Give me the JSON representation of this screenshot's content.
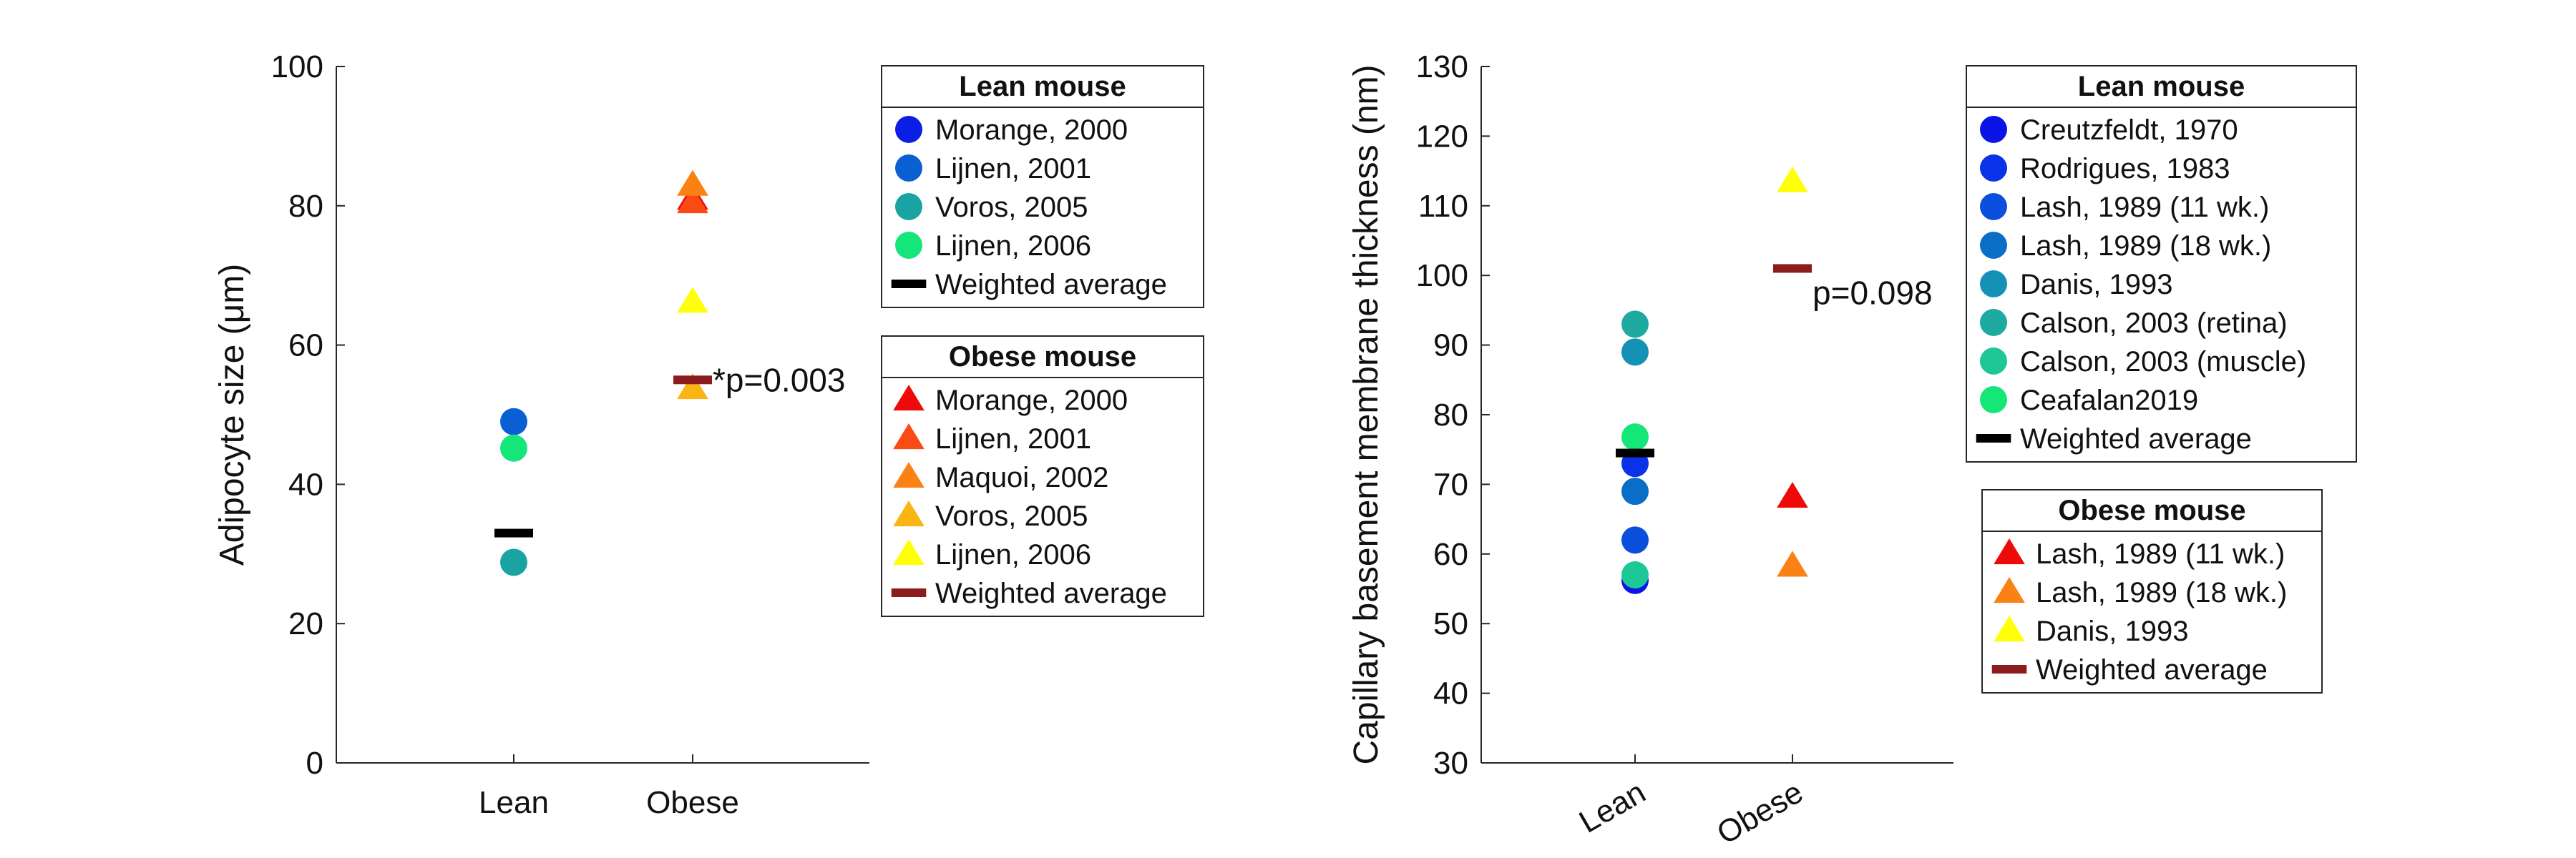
{
  "chart_data": [
    {
      "type": "scatter",
      "ylabel": "Adipocyte size (μm)",
      "ylim": [
        0,
        100
      ],
      "yticks": [
        0,
        20,
        40,
        60,
        80,
        100
      ],
      "categories": [
        "Lean",
        "Obese"
      ],
      "grid": false,
      "series": [
        {
          "name": "Morange, 2000",
          "group": "Lean",
          "x": "Lean",
          "y": null,
          "marker": "circle",
          "color": "#0a1ee6"
        },
        {
          "name": "Lijnen, 2001",
          "group": "Lean",
          "x": "Lean",
          "y": 49,
          "marker": "circle",
          "color": "#0a5fd2"
        },
        {
          "name": "Voros, 2005",
          "group": "Lean",
          "x": "Lean",
          "y": 28.8,
          "marker": "circle",
          "color": "#1aa3a3"
        },
        {
          "name": "Lijnen, 2006",
          "group": "Lean",
          "x": "Lean",
          "y": 45.2,
          "marker": "circle",
          "color": "#14e67a"
        },
        {
          "name": "Weighted average",
          "group": "Lean",
          "x": "Lean",
          "y": 33,
          "marker": "bar",
          "color": "#000000"
        },
        {
          "name": "Morange, 2000",
          "group": "Obese",
          "x": "Obese",
          "y": 81,
          "marker": "triangle",
          "color": "#ee0a0a"
        },
        {
          "name": "Lijnen, 2001",
          "group": "Obese",
          "x": "Obese",
          "y": 80.5,
          "marker": "triangle",
          "color": "#fa4b14"
        },
        {
          "name": "Maquoi, 2002",
          "group": "Obese",
          "x": "Obese",
          "y": 83,
          "marker": "triangle",
          "color": "#fa8214"
        },
        {
          "name": "Voros, 2005",
          "group": "Obese",
          "x": "Obese",
          "y": 53.8,
          "marker": "triangle",
          "color": "#fab414"
        },
        {
          "name": "Lijnen, 2006",
          "group": "Obese",
          "x": "Obese",
          "y": 66.2,
          "marker": "triangle",
          "color": "#ffff0a"
        },
        {
          "name": "Weighted average",
          "group": "Obese",
          "x": "Obese",
          "y": 55,
          "marker": "bar",
          "color": "#8c1c1c"
        }
      ],
      "annotation": "*p=0.003",
      "legend_lean_title": "Lean mouse",
      "legend_obese_title": "Obese mouse",
      "legend_placement": "right"
    },
    {
      "type": "scatter",
      "ylabel": "Capillary basement membrane thickness (nm)",
      "ylim": [
        30,
        130
      ],
      "yticks": [
        30,
        40,
        50,
        60,
        70,
        80,
        90,
        100,
        110,
        120,
        130
      ],
      "categories": [
        "Lean",
        "Obese"
      ],
      "grid": false,
      "series": [
        {
          "name": "Creutzfeldt, 1970",
          "group": "Lean",
          "x": "Lean",
          "y": 56.2,
          "marker": "circle",
          "color": "#0a14e6"
        },
        {
          "name": "Rodrigues, 1983",
          "group": "Lean",
          "x": "Lean",
          "y": 73,
          "marker": "circle",
          "color": "#0a32e6"
        },
        {
          "name": "Lash, 1989 (11 wk.)",
          "group": "Lean",
          "x": "Lean",
          "y": 62,
          "marker": "circle",
          "color": "#0a50dc"
        },
        {
          "name": "Lash, 1989 (18 wk.)",
          "group": "Lean",
          "x": "Lean",
          "y": 69,
          "marker": "circle",
          "color": "#0a6ec8"
        },
        {
          "name": "Danis, 1993",
          "group": "Lean",
          "x": "Lean",
          "y": 89,
          "marker": "circle",
          "color": "#1491b4"
        },
        {
          "name": "Calson, 2003 (retina)",
          "group": "Lean",
          "x": "Lean",
          "y": 93,
          "marker": "circle",
          "color": "#1eaaa0"
        },
        {
          "name": "Calson, 2003 (muscle)",
          "group": "Lean",
          "x": "Lean",
          "y": 57,
          "marker": "circle",
          "color": "#1ec896"
        },
        {
          "name": "Ceafalan2019",
          "group": "Lean",
          "x": "Lean",
          "y": 76.8,
          "marker": "circle",
          "color": "#14e678"
        },
        {
          "name": "Weighted average",
          "group": "Lean",
          "x": "Lean",
          "y": 74.5,
          "marker": "bar",
          "color": "#000000"
        },
        {
          "name": "Lash, 1989 (11 wk.)",
          "group": "Obese",
          "x": "Obese",
          "y": 68.2,
          "marker": "triangle",
          "color": "#ee0a0a"
        },
        {
          "name": "Lash, 1989 (18 wk.)",
          "group": "Obese",
          "x": "Obese",
          "y": 58.3,
          "marker": "triangle",
          "color": "#fa8214"
        },
        {
          "name": "Danis, 1993",
          "group": "Obese",
          "x": "Obese",
          "y": 113.5,
          "marker": "triangle",
          "color": "#ffff0a"
        },
        {
          "name": "Weighted average",
          "group": "Obese",
          "x": "Obese",
          "y": 101,
          "marker": "bar",
          "color": "#8c1c1c"
        }
      ],
      "annotation": "p=0.098",
      "legend_lean_title": "Lean mouse",
      "legend_obese_title": "Obese mouse",
      "legend_placement": "right",
      "xtick_rotation": "angled"
    }
  ]
}
